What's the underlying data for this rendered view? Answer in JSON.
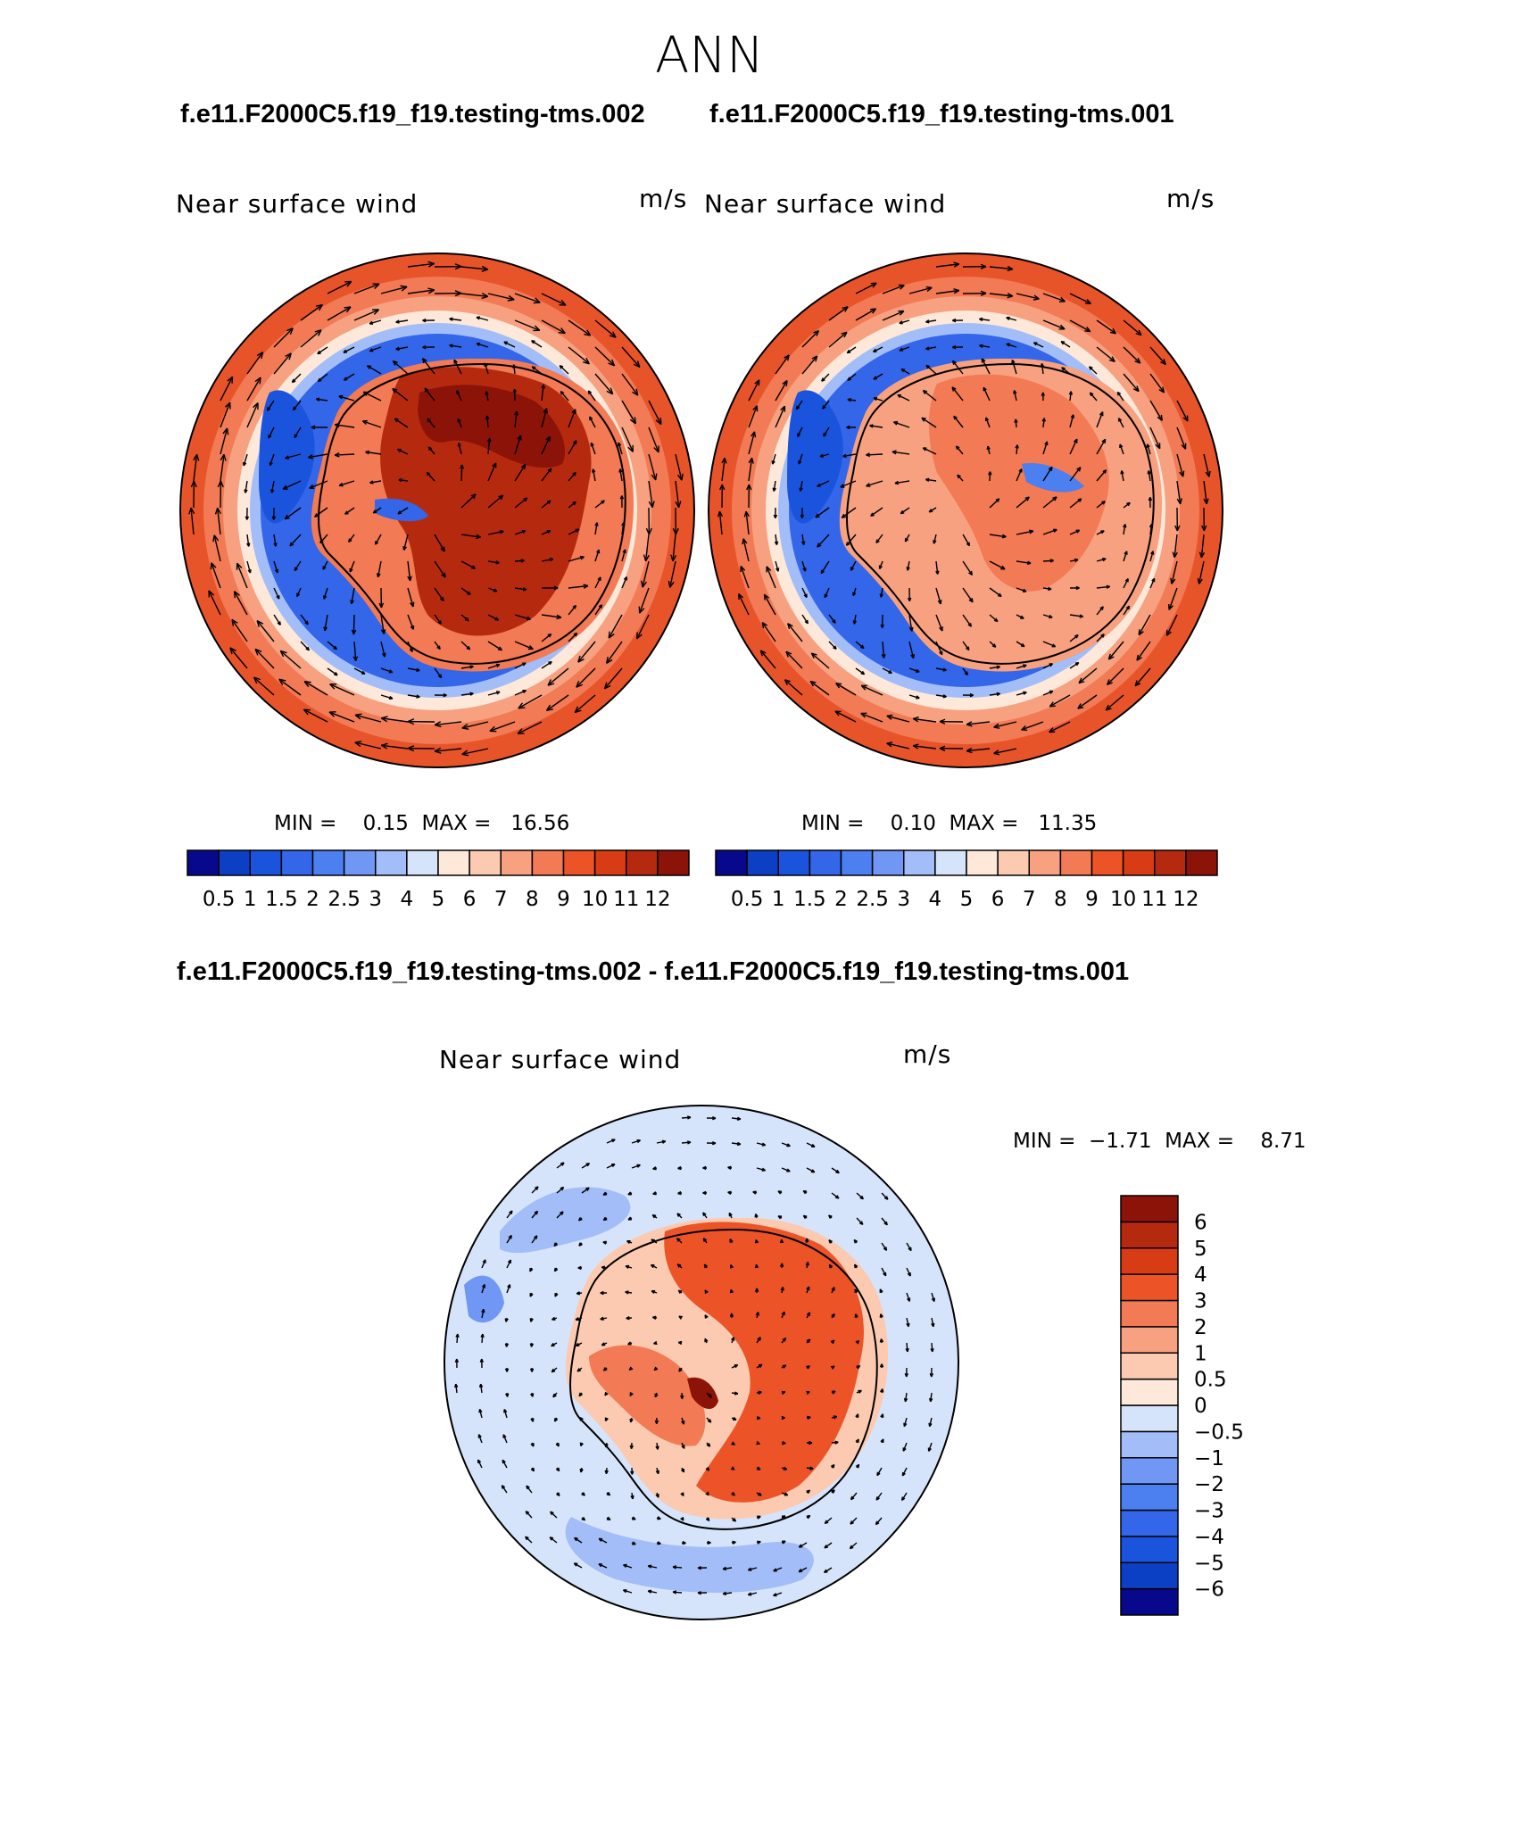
{
  "title": "ANN",
  "top_titles": {
    "left": "f.e11.F2000C5.f19_f19.testing-tms.002",
    "right": "f.e11.F2000C5.f19_f19.testing-tms.001"
  },
  "diff_title": "f.e11.F2000C5.f19_f19.testing-tms.002 - f.e11.F2000C5.f19_f19.testing-tms.001",
  "panels": [
    {
      "id": "case1",
      "var_label": "Near surface wind",
      "units": "m/s",
      "min_label": "MIN =",
      "min_value": "0.15",
      "max_label": "MAX =",
      "max_value": "16.56"
    },
    {
      "id": "case2",
      "var_label": "Near surface wind",
      "units": "m/s",
      "min_label": "MIN =",
      "min_value": "0.10",
      "max_label": "MAX =",
      "max_value": "11.35"
    },
    {
      "id": "diff",
      "var_label": "Near surface wind",
      "units": "m/s",
      "min_label": "MIN =",
      "min_value": "−1.71",
      "max_label": "MAX =",
      "max_value": "8.71"
    }
  ],
  "chart_data": [
    {
      "type": "heatmap",
      "subtype": "polar-stereographic contour map with wind vectors (Antarctica)",
      "title": "Near surface wind",
      "units": "m/s",
      "min": 0.15,
      "max": 16.56,
      "levels": [
        0.5,
        1,
        1.5,
        2,
        2.5,
        3,
        4,
        5,
        6,
        7,
        8,
        9,
        10,
        11,
        12
      ],
      "tick_labels": [
        "0.5",
        "1",
        "1.5",
        "2",
        "2.5",
        "3",
        "4",
        "5",
        "6",
        "7",
        "8",
        "9",
        "10",
        "11",
        "12"
      ],
      "colors": [
        "#08088c",
        "#0b3fc4",
        "#1b54dc",
        "#3366e8",
        "#4c7ff0",
        "#6f97f3",
        "#a2bdf7",
        "#d6e4fb",
        "#fde8da",
        "#fbcab0",
        "#f7a180",
        "#f27a54",
        "#ec5428",
        "#d83c14",
        "#b52a0e",
        "#8c1308"
      ]
    },
    {
      "type": "heatmap",
      "subtype": "polar-stereographic contour map with wind vectors (Antarctica)",
      "title": "Near surface wind",
      "units": "m/s",
      "min": 0.1,
      "max": 11.35,
      "levels": [
        0.5,
        1,
        1.5,
        2,
        2.5,
        3,
        4,
        5,
        6,
        7,
        8,
        9,
        10,
        11,
        12
      ],
      "tick_labels": [
        "0.5",
        "1",
        "1.5",
        "2",
        "2.5",
        "3",
        "4",
        "5",
        "6",
        "7",
        "8",
        "9",
        "10",
        "11",
        "12"
      ],
      "colors": [
        "#08088c",
        "#0b3fc4",
        "#1b54dc",
        "#3366e8",
        "#4c7ff0",
        "#6f97f3",
        "#a2bdf7",
        "#d6e4fb",
        "#fde8da",
        "#fbcab0",
        "#f7a180",
        "#f27a54",
        "#ec5428",
        "#d83c14",
        "#b52a0e",
        "#8c1308"
      ]
    },
    {
      "type": "heatmap",
      "subtype": "difference contour map with wind vectors (Antarctica)",
      "title": "Near surface wind",
      "units": "m/s",
      "min": -1.71,
      "max": 8.71,
      "levels": [
        -6,
        -5,
        -4,
        -3,
        -2,
        -1,
        -0.5,
        0,
        0.5,
        1,
        2,
        3,
        4,
        5,
        6
      ],
      "tick_labels": [
        "−6",
        "−5",
        "−4",
        "−3",
        "−2",
        "−1",
        "−0.5",
        "0",
        "0.5",
        "1",
        "2",
        "3",
        "4",
        "5",
        "6"
      ],
      "colors": [
        "#08088c",
        "#0b3fc4",
        "#1b54dc",
        "#3366e8",
        "#4c7ff0",
        "#6f97f3",
        "#a2bdf7",
        "#d6e4fb",
        "#fde8da",
        "#fbcab0",
        "#f7a180",
        "#f27a54",
        "#ec5428",
        "#d83c14",
        "#b52a0e",
        "#8c1308"
      ]
    }
  ]
}
